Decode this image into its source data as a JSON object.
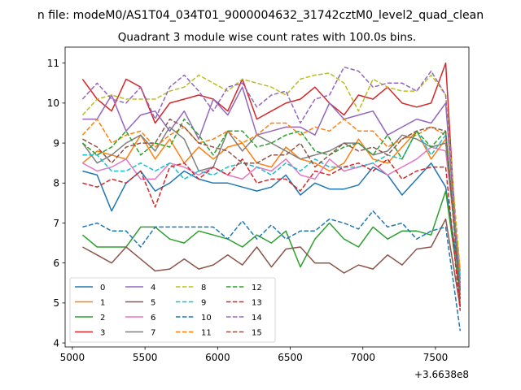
{
  "chart_data": {
    "type": "line",
    "suptitle": "n file: modeM0/AS1T04_034T01_9000004632_31742cztM0_level2_quad_clean",
    "title": "Quadrant 3 module wise count rates with 100.0s bins.",
    "xlabel": "",
    "ylabel": "",
    "x_offset_label": "+3.6638e8",
    "xlim": [
      4950,
      7730
    ],
    "ylim": [
      3.9,
      11.4
    ],
    "xticks": [
      5000,
      5500,
      6000,
      6500,
      7000,
      7500
    ],
    "yticks": [
      4,
      5,
      6,
      7,
      8,
      9,
      10,
      11
    ],
    "x": [
      5070,
      5170,
      5270,
      5370,
      5470,
      5570,
      5670,
      5770,
      5870,
      5970,
      6070,
      6170,
      6270,
      6370,
      6470,
      6570,
      6670,
      6770,
      6870,
      6970,
      7070,
      7170,
      7270,
      7370,
      7470,
      7570,
      7670
    ],
    "legend_position": "lower-left",
    "grid": false,
    "series": [
      {
        "name": "0",
        "color": "#1f77b4",
        "dash": "solid",
        "values": [
          8.3,
          8.2,
          7.3,
          8.0,
          8.3,
          7.8,
          8.0,
          8.3,
          8.1,
          8.0,
          8.0,
          7.9,
          7.8,
          7.9,
          8.2,
          7.7,
          8.0,
          7.85,
          7.85,
          7.95,
          8.4,
          8.2,
          7.7,
          8.1,
          8.5,
          7.9,
          5.5
        ]
      },
      {
        "name": "1",
        "color": "#ff7f0e",
        "dash": "solid",
        "values": [
          8.5,
          8.8,
          8.7,
          8.6,
          9.2,
          8.6,
          9.1,
          8.5,
          8.9,
          8.6,
          8.9,
          9.0,
          8.5,
          8.4,
          8.9,
          8.6,
          8.5,
          8.3,
          8.5,
          9.1,
          8.6,
          8.5,
          8.9,
          9.3,
          8.6,
          9.1,
          5.4
        ]
      },
      {
        "name": "2",
        "color": "#2ca02c",
        "dash": "solid",
        "values": [
          6.7,
          6.4,
          6.4,
          6.4,
          6.9,
          6.9,
          6.6,
          6.5,
          6.8,
          6.7,
          6.6,
          6.4,
          6.7,
          6.5,
          6.8,
          5.9,
          6.6,
          7.0,
          6.6,
          6.4,
          6.9,
          6.6,
          6.8,
          6.8,
          6.7,
          7.8,
          5.2
        ]
      },
      {
        "name": "3",
        "color": "#d62728",
        "dash": "solid",
        "values": [
          10.6,
          10.1,
          9.8,
          10.6,
          10.4,
          9.5,
          10.0,
          10.1,
          10.2,
          10.1,
          9.8,
          10.6,
          9.6,
          9.8,
          10.0,
          10.1,
          10.4,
          10.0,
          9.7,
          10.2,
          10.1,
          10.4,
          10.0,
          9.9,
          10.0,
          11.0,
          4.9
        ]
      },
      {
        "name": "4",
        "color": "#9467bd",
        "dash": "solid",
        "values": [
          9.6,
          9.6,
          10.2,
          9.3,
          9.7,
          9.8,
          9.3,
          9.8,
          9.1,
          10.1,
          9.7,
          10.4,
          9.2,
          9.3,
          9.4,
          9.4,
          9.2,
          10.0,
          9.6,
          9.7,
          9.8,
          9.2,
          9.4,
          9.6,
          9.5,
          10.0,
          5.3
        ]
      },
      {
        "name": "5",
        "color": "#8c564b",
        "dash": "solid",
        "values": [
          6.4,
          6.2,
          6.0,
          6.4,
          6.1,
          5.8,
          5.85,
          6.1,
          5.85,
          5.95,
          6.2,
          5.95,
          6.4,
          5.9,
          6.35,
          6.4,
          6.0,
          6.0,
          5.75,
          5.95,
          5.85,
          6.2,
          5.95,
          6.35,
          6.4,
          7.1,
          4.9
        ]
      },
      {
        "name": "6",
        "color": "#e377c2",
        "dash": "solid",
        "values": [
          8.5,
          8.3,
          8.4,
          8.6,
          8.1,
          8.1,
          8.5,
          8.4,
          8.2,
          8.4,
          8.2,
          8.1,
          8.4,
          8.3,
          8.6,
          8.2,
          8.1,
          8.6,
          8.3,
          8.4,
          8.5,
          8.2,
          8.4,
          8.6,
          8.9,
          8.8,
          5.7
        ]
      },
      {
        "name": "7",
        "color": "#7f7f7f",
        "dash": "solid",
        "values": [
          9.0,
          8.5,
          8.7,
          9.0,
          9.2,
          8.8,
          9.4,
          9.1,
          8.3,
          8.4,
          9.3,
          8.8,
          9.2,
          9.0,
          8.8,
          8.6,
          8.7,
          8.8,
          9.0,
          9.0,
          8.7,
          8.8,
          9.2,
          9.1,
          8.9,
          9.0,
          5.6
        ]
      },
      {
        "name": "8",
        "color": "#bcbd22",
        "dash": "dashed",
        "values": [
          9.7,
          10.1,
          10.2,
          10.1,
          10.1,
          10.1,
          10.3,
          10.4,
          10.7,
          10.5,
          10.3,
          10.6,
          10.5,
          10.4,
          10.2,
          10.6,
          10.7,
          10.75,
          10.5,
          9.8,
          10.6,
          10.4,
          10.3,
          10.3,
          10.7,
          10.2,
          5.8
        ]
      },
      {
        "name": "9",
        "color": "#17becf",
        "dash": "dashed",
        "values": [
          8.7,
          8.7,
          8.3,
          8.3,
          8.5,
          8.3,
          8.5,
          8.1,
          8.3,
          8.2,
          8.4,
          8.5,
          8.4,
          8.2,
          8.5,
          8.3,
          8.6,
          8.4,
          8.4,
          8.4,
          8.5,
          8.7,
          8.6,
          9.3,
          8.7,
          9.2,
          5.6
        ]
      },
      {
        "name": "10",
        "color": "#1f77b4",
        "dash": "dashed",
        "values": [
          6.9,
          7.0,
          6.8,
          6.8,
          6.4,
          6.9,
          6.9,
          6.9,
          6.9,
          6.9,
          6.6,
          7.05,
          6.6,
          6.95,
          6.6,
          6.8,
          6.8,
          7.1,
          7.0,
          6.85,
          7.3,
          6.9,
          7.0,
          6.6,
          6.8,
          6.9,
          4.3
        ]
      },
      {
        "name": "11",
        "color": "#ff7f0e",
        "dash": "dashed",
        "values": [
          9.2,
          9.6,
          9.0,
          9.2,
          9.3,
          8.9,
          9.2,
          9.4,
          9.0,
          9.1,
          9.3,
          9.0,
          9.2,
          9.5,
          9.5,
          9.2,
          9.4,
          9.3,
          9.6,
          9.3,
          9.3,
          8.9,
          9.1,
          9.2,
          9.4,
          9.2,
          5.8
        ]
      },
      {
        "name": "12",
        "color": "#2ca02c",
        "dash": "dashed",
        "values": [
          9.0,
          8.7,
          8.9,
          9.3,
          8.7,
          9.0,
          8.9,
          9.6,
          9.2,
          8.7,
          9.3,
          9.3,
          8.9,
          9.0,
          9.2,
          9.3,
          8.8,
          8.7,
          8.9,
          9.0,
          8.7,
          9.2,
          8.6,
          9.3,
          8.9,
          9.3,
          5.3
        ]
      },
      {
        "name": "13",
        "color": "#d62728",
        "dash": "dashed",
        "values": [
          8.0,
          7.9,
          8.1,
          8.0,
          8.3,
          7.4,
          8.4,
          8.5,
          8.1,
          8.4,
          8.2,
          8.6,
          8.0,
          8.1,
          8.1,
          7.8,
          8.3,
          8.2,
          8.4,
          8.5,
          8.3,
          8.6,
          8.1,
          8.3,
          8.4,
          8.4,
          4.8
        ]
      },
      {
        "name": "14",
        "color": "#9467bd",
        "dash": "dashed",
        "values": [
          10.1,
          10.5,
          10.1,
          10.0,
          10.4,
          9.6,
          10.4,
          10.7,
          10.3,
          9.8,
          10.4,
          10.5,
          9.9,
          10.2,
          10.3,
          9.5,
          10.1,
          10.2,
          10.9,
          10.8,
          10.4,
          10.5,
          10.5,
          10.3,
          10.8,
          10.2,
          5.3
        ]
      },
      {
        "name": "15",
        "color": "#8c564b",
        "dash": "dashed",
        "values": [
          9.1,
          8.9,
          8.5,
          8.9,
          9.0,
          9.0,
          9.6,
          9.4,
          9.0,
          8.9,
          8.8,
          8.5,
          8.5,
          8.7,
          8.7,
          9.0,
          8.4,
          8.7,
          9.0,
          8.8,
          8.9,
          8.7,
          9.1,
          9.3,
          9.4,
          9.3,
          5.1
        ]
      }
    ]
  }
}
